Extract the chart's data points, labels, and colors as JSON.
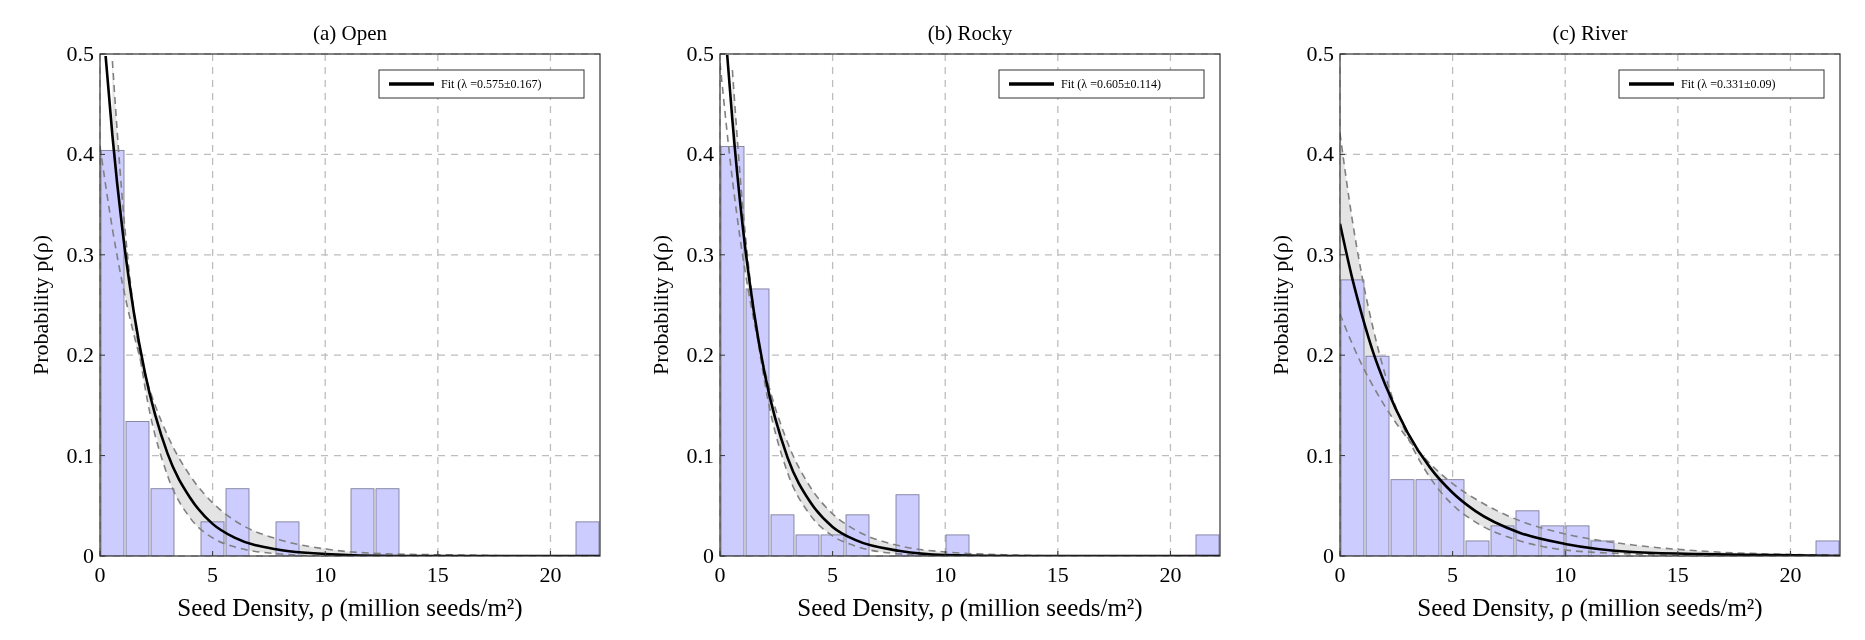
{
  "chart_data": [
    {
      "type": "histogram",
      "title": "(a) Open",
      "xlabel": "Seed Density, ρ (million seeds/m²)",
      "ylabel": "Probability p(ρ)",
      "xlim": [
        0,
        22.2
      ],
      "ylim": [
        0,
        0.5
      ],
      "xticks": [
        0,
        5,
        10,
        15,
        20
      ],
      "yticks": [
        0,
        0.1,
        0.2,
        0.3,
        0.4,
        0.5
      ],
      "grid": true,
      "legend": "top right",
      "color": "#ccccff",
      "bins": [
        0,
        1.11,
        2.22,
        3.33,
        4.44,
        5.55,
        6.66,
        7.77,
        8.88,
        9.99,
        11.1,
        12.21,
        13.32,
        14.43,
        15.54,
        16.65,
        17.76,
        18.87,
        19.98,
        21.09,
        22.2
      ],
      "values": [
        0.404,
        0.134,
        0.067,
        0,
        0.034,
        0.067,
        0,
        0.034,
        0,
        0,
        0.067,
        0.067,
        0,
        0,
        0,
        0,
        0,
        0,
        0,
        0.034
      ],
      "series": [
        {
          "type": "line",
          "line_style": "dashed",
          "color": "#808080",
          "x": [
            0,
            0.55,
            1,
            1.5,
            2,
            3,
            4,
            5,
            6,
            8,
            10,
            13,
            16,
            19,
            22.2
          ],
          "values": [
            0.408,
            0.326,
            0.271,
            0.221,
            0.18,
            0.12,
            0.08,
            0.053,
            0.035,
            0.016,
            0.007,
            0.002,
            0.001,
            0,
            0
          ]
        },
        {
          "type": "line",
          "line_style": "dashed",
          "color": "#808080",
          "x": [
            0.55,
            1,
            1.5,
            2,
            3,
            4,
            5,
            6,
            8,
            10,
            13,
            16,
            22.2
          ],
          "values": [
            0.493,
            0.353,
            0.244,
            0.168,
            0.08,
            0.038,
            0.018,
            0.009,
            0.002,
            0,
            0,
            0,
            0
          ]
        },
        {
          "type": "line",
          "name": "Fit (λ =0.575±0.167)",
          "color": "#000000",
          "x": [
            0.25,
            0.55,
            1,
            1.5,
            2,
            3,
            4,
            5,
            6,
            8,
            10,
            13,
            16,
            19,
            22.2
          ],
          "values": [
            0.498,
            0.419,
            0.324,
            0.243,
            0.182,
            0.102,
            0.058,
            0.032,
            0.018,
            0.006,
            0.002,
            0,
            0,
            0,
            0
          ],
          "lower": [
            null,
            0.326,
            0.271,
            0.221,
            0.168,
            0.08,
            0.038,
            0.018,
            0.009,
            0.002,
            0,
            0,
            0,
            0,
            0
          ],
          "upper": [
            null,
            0.493,
            0.353,
            0.244,
            0.18,
            0.12,
            0.08,
            0.053,
            0.035,
            0.016,
            0.007,
            0.002,
            0.001,
            0,
            0
          ]
        }
      ]
    },
    {
      "type": "histogram",
      "title": "(b) Rocky",
      "xlabel": "Seed Density, ρ (million seeds/m²)",
      "ylabel": "Probability p(ρ)",
      "xlim": [
        0,
        22.2
      ],
      "ylim": [
        0,
        0.5
      ],
      "xticks": [
        0,
        5,
        10,
        15,
        20
      ],
      "yticks": [
        0,
        0.1,
        0.2,
        0.3,
        0.4,
        0.5
      ],
      "grid": true,
      "legend": "top right",
      "color": "#ccccff",
      "bins": [
        0,
        1.11,
        2.22,
        3.33,
        4.44,
        5.55,
        6.66,
        7.77,
        8.88,
        9.99,
        11.1,
        12.21,
        13.32,
        14.43,
        15.54,
        16.65,
        17.76,
        18.87,
        19.98,
        21.09,
        22.2
      ],
      "values": [
        0.408,
        0.266,
        0.041,
        0.021,
        0.021,
        0.041,
        0,
        0.061,
        0,
        0.021,
        0,
        0,
        0,
        0,
        0,
        0,
        0,
        0,
        0,
        0.021
      ],
      "series": [
        {
          "type": "line",
          "line_style": "dashed",
          "color": "#808080",
          "x": [
            0,
            0.55,
            1,
            1.5,
            2,
            3,
            4,
            5,
            6,
            8,
            10,
            13,
            16,
            19,
            22.2
          ],
          "values": [
            0.491,
            0.375,
            0.3,
            0.235,
            0.184,
            0.113,
            0.069,
            0.042,
            0.026,
            0.01,
            0.004,
            0.001,
            0,
            0,
            0
          ]
        },
        {
          "type": "line",
          "line_style": "dashed",
          "color": "#808080",
          "x": [
            0.55,
            1,
            1.5,
            2,
            3,
            4,
            5,
            6,
            8,
            10,
            13,
            16,
            22.2
          ],
          "values": [
            0.484,
            0.35,
            0.245,
            0.171,
            0.083,
            0.041,
            0.02,
            0.01,
            0.002,
            0,
            0,
            0,
            0
          ]
        },
        {
          "type": "line",
          "name": "Fit (λ =0.605±0.114)",
          "color": "#000000",
          "x": [
            0.32,
            0.55,
            1,
            1.5,
            2,
            3,
            4,
            5,
            6,
            8,
            10,
            13,
            16,
            19,
            22.2
          ],
          "values": [
            0.499,
            0.434,
            0.33,
            0.244,
            0.18,
            0.098,
            0.054,
            0.029,
            0.016,
            0.005,
            0.001,
            0,
            0,
            0,
            0
          ],
          "lower": [
            null,
            0.375,
            0.3,
            0.235,
            0.171,
            0.083,
            0.041,
            0.02,
            0.01,
            0.002,
            0,
            0,
            0,
            0,
            0
          ],
          "upper": [
            null,
            0.484,
            0.35,
            0.245,
            0.184,
            0.113,
            0.069,
            0.042,
            0.026,
            0.01,
            0.004,
            0.001,
            0,
            0,
            0
          ]
        }
      ]
    },
    {
      "type": "histogram",
      "title": "(c) River",
      "xlabel": "Seed Density, ρ (million seeds/m²)",
      "ylabel": "Probability p(ρ)",
      "xlim": [
        0,
        22.2
      ],
      "ylim": [
        0,
        0.5
      ],
      "xticks": [
        0,
        5,
        10,
        15,
        20
      ],
      "yticks": [
        0,
        0.1,
        0.2,
        0.3,
        0.4,
        0.5
      ],
      "grid": true,
      "legend": "top right",
      "color": "#ccccff",
      "bins": [
        0,
        1.11,
        2.22,
        3.33,
        4.44,
        5.55,
        6.66,
        7.77,
        8.88,
        9.99,
        11.1,
        12.21,
        13.32,
        14.43,
        15.54,
        16.65,
        17.76,
        18.87,
        19.98,
        21.09,
        22.2
      ],
      "values": [
        0.275,
        0.199,
        0.076,
        0.076,
        0.076,
        0.015,
        0.03,
        0.045,
        0.03,
        0.03,
        0.015,
        0,
        0,
        0,
        0,
        0,
        0,
        0,
        0,
        0.015
      ],
      "series": [
        {
          "type": "line",
          "line_style": "dashed",
          "color": "#808080",
          "x": [
            0,
            0.55,
            1,
            1.5,
            2,
            3,
            4,
            5,
            6,
            8,
            10,
            13,
            16,
            19,
            22.2
          ],
          "values": [
            0.241,
            0.211,
            0.189,
            0.168,
            0.149,
            0.117,
            0.092,
            0.072,
            0.057,
            0.035,
            0.022,
            0.011,
            0.005,
            0.002,
            0.001
          ]
        },
        {
          "type": "line",
          "line_style": "dashed",
          "color": "#808080",
          "x": [
            0,
            0.55,
            1,
            1.5,
            2,
            3,
            4,
            5,
            6,
            8,
            10,
            13,
            16,
            19,
            22.2
          ],
          "values": [
            0.421,
            0.334,
            0.276,
            0.224,
            0.181,
            0.119,
            0.078,
            0.051,
            0.034,
            0.015,
            0.006,
            0.002,
            0,
            0,
            0
          ]
        },
        {
          "type": "line",
          "name": "Fit (λ =0.331±0.09)",
          "color": "#000000",
          "x": [
            0,
            0.55,
            1,
            1.5,
            2,
            3,
            4,
            5,
            6,
            8,
            10,
            13,
            16,
            19,
            22.2
          ],
          "values": [
            0.331,
            0.276,
            0.238,
            0.201,
            0.171,
            0.123,
            0.088,
            0.063,
            0.045,
            0.023,
            0.012,
            0.004,
            0.002,
            0.001,
            0
          ],
          "lower": [
            0.241,
            0.211,
            0.189,
            0.168,
            0.149,
            0.117,
            0.078,
            0.051,
            0.034,
            0.015,
            0.006,
            0.002,
            0,
            0,
            0
          ],
          "upper": [
            0.421,
            0.334,
            0.276,
            0.224,
            0.181,
            0.119,
            0.092,
            0.072,
            0.057,
            0.035,
            0.022,
            0.011,
            0.005,
            0.002,
            0.001
          ]
        }
      ]
    }
  ]
}
